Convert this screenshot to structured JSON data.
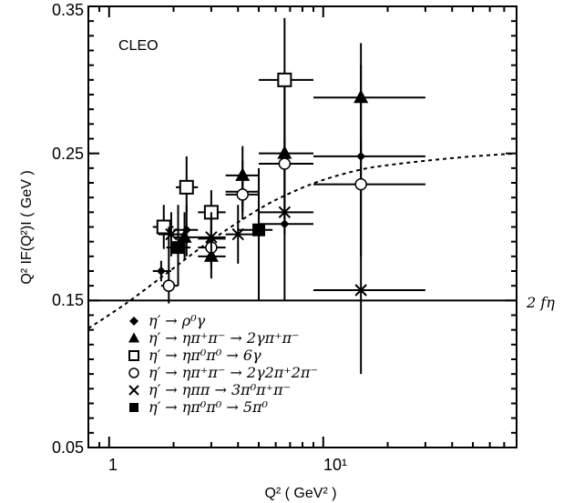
{
  "chart_data": {
    "type": "scatter",
    "title": "",
    "xlabel": "Q² ( GeV² )",
    "ylabel": "Q² IF(Q²)I ( GeV )",
    "xscale": "log",
    "xlim": [
      0.8,
      80
    ],
    "ylim": [
      0.05,
      0.35
    ],
    "grid": false,
    "legend_position": "bottom-left",
    "annotation": "CLEO",
    "x_tick_labels": [
      "1",
      "10¹"
    ],
    "y_tick_labels": [
      "0.05",
      "0.15",
      "0.25",
      "0.35"
    ],
    "reference_line": {
      "y": 0.15,
      "label": "2 fη"
    },
    "curve": {
      "style": "dashed",
      "x": [
        0.8,
        1.2,
        2,
        3,
        5,
        7,
        10,
        15,
        20,
        30,
        50,
        80
      ],
      "y": [
        0.131,
        0.148,
        0.172,
        0.191,
        0.212,
        0.223,
        0.232,
        0.239,
        0.242,
        0.245,
        0.248,
        0.25
      ]
    },
    "series": [
      {
        "name": "η′ → ρ⁰γ",
        "marker": "diamond-filled",
        "points": [
          {
            "x": 1.75,
            "y": 0.17,
            "xerr": [
              1.6,
              1.95
            ],
            "yerr": [
              0.163,
              0.177
            ]
          },
          {
            "x": 2.3,
            "y": 0.198,
            "xerr": [
              2.0,
              2.6
            ],
            "yerr": [
              0.18,
              0.215
            ]
          },
          {
            "x": 3.0,
            "y": 0.192,
            "xerr": [
              2.6,
              3.5
            ],
            "yerr": [
              0.175,
              0.21
            ]
          },
          {
            "x": 4.2,
            "y": 0.224,
            "xerr": [
              3.5,
              5.0
            ],
            "yerr": [
              0.205,
              0.245
            ]
          },
          {
            "x": 6.6,
            "y": 0.202,
            "xerr": [
              5.0,
              9.0
            ],
            "yerr": [
              0.15,
              0.25
            ]
          },
          {
            "x": 15,
            "y": 0.248,
            "xerr": [
              9.0,
              30
            ],
            "yerr": [
              0.18,
              0.31
            ]
          }
        ]
      },
      {
        "name": "η′ → ηπ⁺π⁻ → 2γπ⁺π⁻",
        "marker": "triangle-filled",
        "points": [
          {
            "x": 2.25,
            "y": 0.193,
            "xerr": [
              2.0,
              2.6
            ],
            "yerr": [
              0.178,
              0.21
            ]
          },
          {
            "x": 3.0,
            "y": 0.18,
            "xerr": [
              2.6,
              3.5
            ],
            "yerr": [
              0.165,
              0.197
            ]
          },
          {
            "x": 4.2,
            "y": 0.235,
            "xerr": [
              3.5,
              5.0
            ],
            "yerr": [
              0.215,
              0.255
            ]
          },
          {
            "x": 6.6,
            "y": 0.25,
            "xerr": [
              5.0,
              9.0
            ],
            "yerr": [
              0.205,
              0.3
            ]
          },
          {
            "x": 15,
            "y": 0.288,
            "xerr": [
              9.0,
              30
            ],
            "yerr": [
              0.248,
              0.325
            ]
          }
        ]
      },
      {
        "name": "η′ → ηπ⁰π⁰ → 6γ",
        "marker": "square-open",
        "points": [
          {
            "x": 1.8,
            "y": 0.2,
            "xerr": [
              1.6,
              2.0
            ],
            "yerr": [
              0.185,
              0.215
            ]
          },
          {
            "x": 2.3,
            "y": 0.227,
            "xerr": [
              2.05,
              2.6
            ],
            "yerr": [
              0.21,
              0.248
            ]
          },
          {
            "x": 3.0,
            "y": 0.21,
            "xerr": [
              2.6,
              3.5
            ],
            "yerr": [
              0.195,
              0.225
            ]
          },
          {
            "x": 6.6,
            "y": 0.3,
            "xerr": [
              5.0,
              9.0
            ],
            "yerr": [
              0.25,
              0.342
            ]
          }
        ]
      },
      {
        "name": "η′ → ηπ⁺π⁻ → 2γ2π⁺2π⁻",
        "marker": "circle-open",
        "points": [
          {
            "x": 1.9,
            "y": 0.16,
            "xerr": [
              1.75,
              2.1
            ],
            "yerr": [
              0.148,
              0.2
            ]
          },
          {
            "x": 3.0,
            "y": 0.186,
            "xerr": [
              2.6,
              3.5
            ],
            "yerr": [
              0.172,
              0.2
            ]
          },
          {
            "x": 4.2,
            "y": 0.222,
            "xerr": [
              3.5,
              5.0
            ],
            "yerr": [
              0.21,
              0.235
            ]
          },
          {
            "x": 6.6,
            "y": 0.243,
            "xerr": [
              5.0,
              9.0
            ],
            "yerr": [
              0.225,
              0.26
            ]
          },
          {
            "x": 15,
            "y": 0.229,
            "xerr": [
              9.0,
              30
            ],
            "yerr": [
              0.2,
              0.26
            ]
          }
        ]
      },
      {
        "name": "η′ → ηππ → 3π⁰π⁺π⁻",
        "marker": "cross",
        "points": [
          {
            "x": 1.95,
            "y": 0.195,
            "xerr": [
              1.7,
              2.2
            ],
            "yerr": [
              0.18,
              0.21
            ]
          },
          {
            "x": 3.0,
            "y": 0.193,
            "xerr": [
              2.6,
              3.5
            ],
            "yerr": [
              0.175,
              0.21
            ]
          },
          {
            "x": 4.0,
            "y": 0.195,
            "xerr": [
              3.5,
              5.0
            ],
            "yerr": [
              0.175,
              0.215
            ]
          },
          {
            "x": 6.6,
            "y": 0.21,
            "xerr": [
              5.0,
              9.0
            ],
            "yerr": [
              0.195,
              0.225
            ]
          },
          {
            "x": 15,
            "y": 0.157,
            "xerr": [
              9.0,
              30
            ],
            "yerr": [
              0.1,
              0.2
            ]
          }
        ]
      },
      {
        "name": "η′ → ηπ⁰π⁰ → 5π⁰",
        "marker": "square-filled",
        "points": [
          {
            "x": 2.1,
            "y": 0.186,
            "xerr": [
              1.85,
              2.4
            ],
            "yerr": [
              0.16,
              0.215
            ]
          },
          {
            "x": 5.0,
            "y": 0.198,
            "xerr": [
              4.0,
              5.8
            ],
            "yerr": [
              0.15,
              0.24
            ]
          }
        ]
      }
    ]
  }
}
